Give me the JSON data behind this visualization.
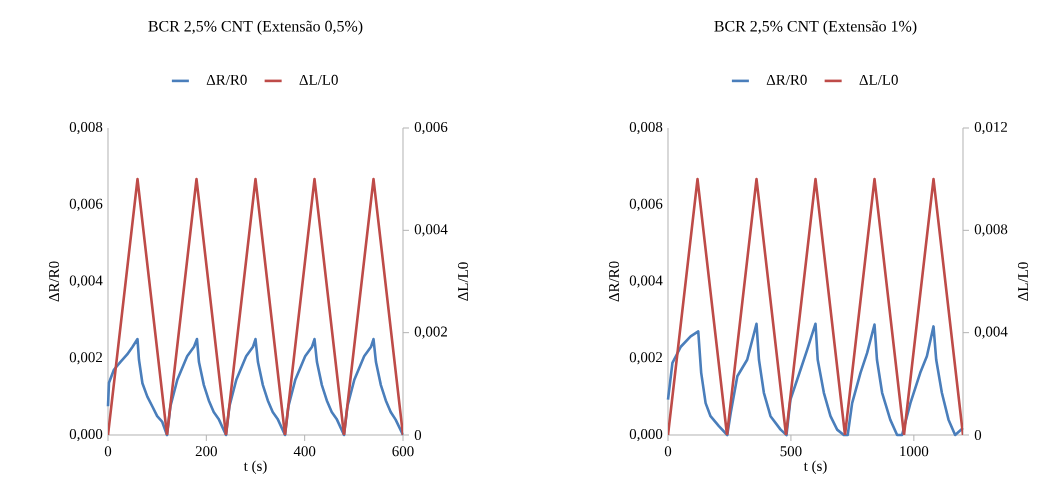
{
  "chart_data": [
    {
      "type": "line",
      "title": "BCR 2,5% CNT (Extensão 0,5%)",
      "xlabel": "t (s)",
      "ylabel": "ΔR/R0",
      "y2label": "ΔL/L0",
      "legend": "top",
      "grid": false,
      "xlim": [
        0,
        600
      ],
      "xticks": [
        0,
        200,
        400,
        600
      ],
      "ylim": [
        0,
        0.008
      ],
      "yticks": [
        {
          "value": 0,
          "label": "0,000"
        },
        {
          "value": 0.002,
          "label": "0,002"
        },
        {
          "value": 0.004,
          "label": "0,004"
        },
        {
          "value": 0.006,
          "label": "0,006"
        },
        {
          "value": 0.008,
          "label": "0,008"
        }
      ],
      "y2lim": [
        0,
        0.006
      ],
      "y2ticks": [
        0,
        {
          "value": 0.002,
          "label": "0,002"
        },
        {
          "value": 0.004,
          "label": "0,004"
        },
        {
          "value": 0.006,
          "label": "0,006"
        }
      ],
      "series": [
        {
          "name": "ΔR/R0",
          "color": "#4a7ebb",
          "x": [
            0,
            2,
            12,
            25,
            39,
            50,
            60,
            63,
            70,
            80,
            90,
            100,
            110,
            120,
            127,
            141,
            161,
            175,
            181,
            185,
            195,
            205,
            215,
            225,
            240,
            247,
            261,
            281,
            295,
            300,
            305,
            315,
            325,
            335,
            345,
            360,
            367,
            381,
            401,
            415,
            420,
            425,
            435,
            445,
            455,
            465,
            480,
            487,
            501,
            521,
            535,
            540,
            545,
            555,
            565,
            575,
            585,
            600
          ],
          "values": [
            0.00075,
            0.00136,
            0.0017,
            0.0019,
            0.0021,
            0.0023,
            0.0025,
            0.00196,
            0.00135,
            0.001,
            0.00075,
            0.00049,
            0.00035,
            0,
            0.00075,
            0.00144,
            0.00205,
            0.0023,
            0.0025,
            0.0019,
            0.0013,
            0.0009,
            0.0006,
            0.00042,
            0,
            0.00075,
            0.00144,
            0.00205,
            0.0023,
            0.0025,
            0.0019,
            0.0013,
            0.0009,
            0.0006,
            0.00042,
            0,
            0.00075,
            0.00144,
            0.00205,
            0.0023,
            0.0025,
            0.0019,
            0.0013,
            0.0009,
            0.0006,
            0.00042,
            0,
            0.00075,
            0.00144,
            0.00205,
            0.0023,
            0.0025,
            0.0019,
            0.0013,
            0.0009,
            0.0006,
            0.0004,
            0
          ]
        },
        {
          "name": "ΔL/L0",
          "color": "#be4b48",
          "axis": "y2",
          "x": [
            0,
            60,
            120,
            180,
            240,
            300,
            360,
            420,
            480,
            540,
            600
          ],
          "values": [
            0,
            0.005,
            0,
            0.005,
            0,
            0.005,
            0,
            0.005,
            0,
            0.005,
            0
          ]
        }
      ]
    },
    {
      "type": "line",
      "title": "BCR 2,5% CNT (Extensão 1%)",
      "xlabel": "t (s)",
      "ylabel": "ΔR/R0",
      "y2label": "ΔL/L0",
      "legend": "top",
      "grid": false,
      "xlim": [
        0,
        1200
      ],
      "xticks": [
        0,
        500,
        1000
      ],
      "ylim": [
        0,
        0.008
      ],
      "yticks": [
        {
          "value": 0,
          "label": "0,000"
        },
        {
          "value": 0.002,
          "label": "0,002"
        },
        {
          "value": 0.004,
          "label": "0,004"
        },
        {
          "value": 0.006,
          "label": "0,006"
        },
        {
          "value": 0.008,
          "label": "0,008"
        }
      ],
      "y2lim": [
        0,
        0.012
      ],
      "y2ticks": [
        0,
        {
          "value": 0.004,
          "label": "0,004"
        },
        {
          "value": 0.008,
          "label": "0,008"
        },
        {
          "value": 0.012,
          "label": "0,012"
        }
      ],
      "series": [
        {
          "name": "ΔR/R0",
          "color": "#4a7ebb",
          "x": [
            0,
            18,
            52,
            92,
            123,
            135,
            153,
            173,
            207,
            241,
            255,
            282,
            322,
            360,
            370,
            390,
            417,
            458,
            482,
            498,
            539,
            566,
            600,
            609,
            634,
            661,
            688,
            715,
            731,
            749,
            783,
            810,
            840,
            850,
            871,
            904,
            932,
            952,
            986,
            1026,
            1053,
            1080,
            1091,
            1114,
            1141,
            1168,
            1200
          ],
          "values": [
            0.00092,
            0.00188,
            0.0023,
            0.00257,
            0.0027,
            0.00162,
            0.00083,
            0.00049,
            0.00023,
            0,
            0.00057,
            0.00153,
            0.00196,
            0.0029,
            0.00196,
            0.0011,
            0.00049,
            0.00014,
            0,
            0.00092,
            0.0017,
            0.00222,
            0.0029,
            0.00196,
            0.0011,
            0.00049,
            0.00014,
            0,
            0,
            0.00083,
            0.00162,
            0.00214,
            0.00288,
            0.00196,
            0.0011,
            0.0004,
            0,
            0,
            0.00083,
            0.00162,
            0.00205,
            0.00283,
            0.00196,
            0.0011,
            0.0004,
            0,
            0.00018
          ]
        },
        {
          "name": "ΔL/L0",
          "color": "#be4b48",
          "axis": "y2",
          "x": [
            0,
            120,
            240,
            360,
            480,
            600,
            720,
            840,
            960,
            1080,
            1200
          ],
          "values": [
            0,
            0.01,
            0,
            0.01,
            0,
            0.01,
            0,
            0.01,
            0,
            0.01,
            0
          ]
        }
      ]
    }
  ]
}
